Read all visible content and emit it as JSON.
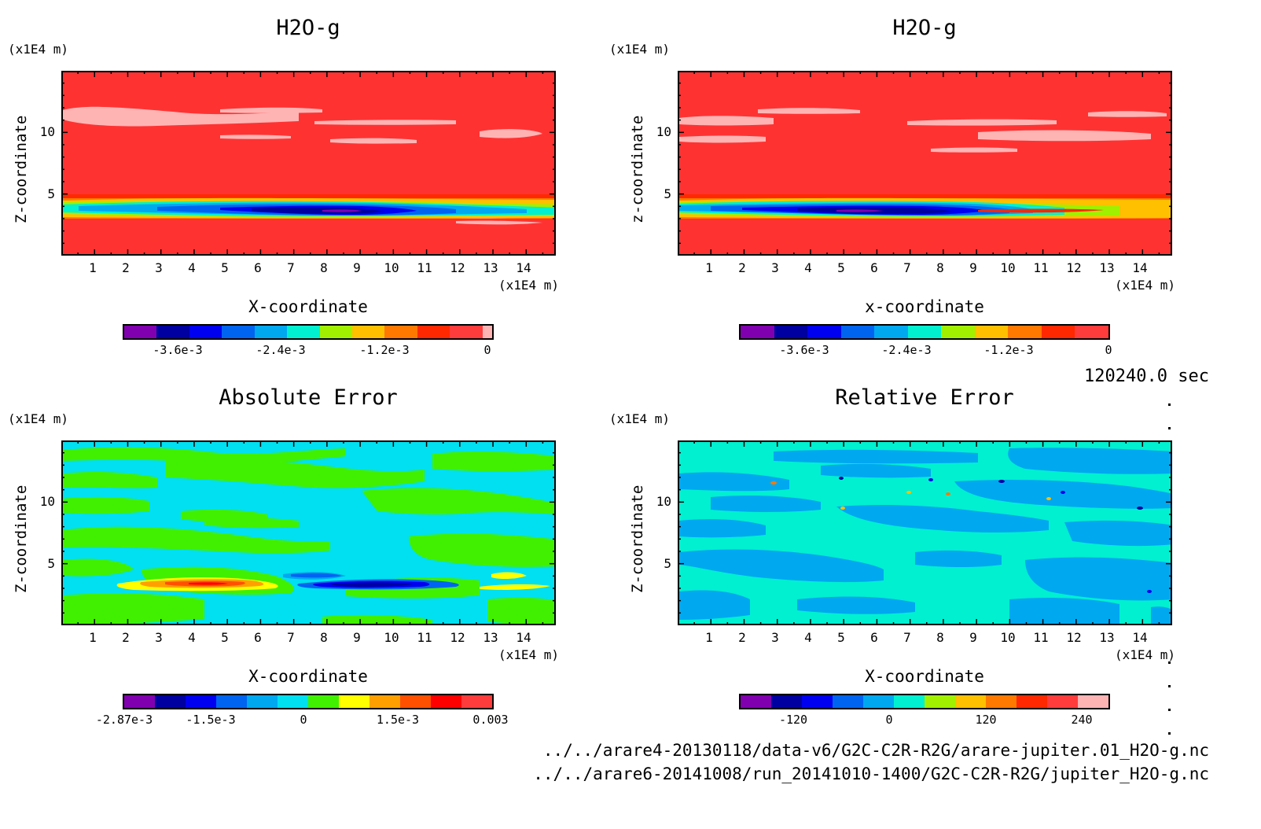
{
  "time_label": "120240.0 sec",
  "files": [
    "../../arare4-20130118/data-v6/G2C-C2R-R2G/arare-jupiter.01_H2O-g.nc",
    "../../arare6-20141008/run_20141010-1400/G2C-C2R-R2G/jupiter_H2O-g.nc"
  ],
  "colors": {
    "levels_h2o": [
      "#8000b0",
      "#0000a0",
      "#0000f0",
      "#0064f0",
      "#00a8f0",
      "#00f0d0",
      "#a0f000",
      "#ffc000",
      "#ff7800",
      "#ff2800",
      "#ff3c3c",
      "#ffb4b4"
    ],
    "levels_abs": [
      "#8000b0",
      "#0000a0",
      "#0000f0",
      "#0064f0",
      "#00a8f0",
      "#00e0f0",
      "#40f000",
      "#ffff00",
      "#ffa000",
      "#ff5000",
      "#ff0000",
      "#ff3c3c"
    ],
    "levels_rel": [
      "#8000b0",
      "#0000a0",
      "#0000f0",
      "#0064f0",
      "#00a8f0",
      "#00f0d0",
      "#a0f000",
      "#ffc000",
      "#ff7800",
      "#ff2800",
      "#ff3c3c",
      "#ffb4b4"
    ]
  },
  "chart_data": [
    {
      "type": "heatmap",
      "title": "H2O-g",
      "xlabel": "X-coordinate",
      "ylabel": "Z-coordinate",
      "x_unit": "(x1E4 m)",
      "y_unit": "(x1E4 m)",
      "x_ticks": [
        "1",
        "2",
        "3",
        "4",
        "5",
        "6",
        "7",
        "8",
        "9",
        "10",
        "11",
        "12",
        "13",
        "14"
      ],
      "y_ticks": [
        "5",
        "10"
      ],
      "xlim": [
        0,
        15
      ],
      "ylim": [
        0,
        15
      ],
      "colorbar_ticks": [
        "-3.6e-3",
        "-2.4e-3",
        "-1.2e-3",
        "0"
      ],
      "colorbar_range": [
        -0.0045,
        0.0002
      ],
      "description_field": "moist layer anomaly near z=3.5 with minimum near x=8.5"
    },
    {
      "type": "heatmap",
      "title": "H2O-g",
      "xlabel": "x-coordinate",
      "ylabel": "z-coordinate",
      "x_unit": "(x1E4 m)",
      "y_unit": "(x1E4 m)",
      "x_ticks": [
        "1",
        "2",
        "3",
        "4",
        "5",
        "6",
        "7",
        "8",
        "9",
        "10",
        "11",
        "12",
        "13",
        "14"
      ],
      "y_ticks": [
        "5",
        "10"
      ],
      "xlim": [
        0,
        15
      ],
      "ylim": [
        0,
        15
      ],
      "colorbar_ticks": [
        "-3.6e-3",
        "-2.4e-3",
        "-1.2e-3",
        "0"
      ],
      "colorbar_range": [
        -0.0045,
        0.0002
      ]
    },
    {
      "type": "heatmap",
      "title": "Absolute Error",
      "xlabel": "X-coordinate",
      "ylabel": "Z-coordinate",
      "x_unit": "(x1E4 m)",
      "y_unit": "(x1E4 m)",
      "x_ticks": [
        "1",
        "2",
        "3",
        "4",
        "5",
        "6",
        "7",
        "8",
        "9",
        "10",
        "11",
        "12",
        "13",
        "14"
      ],
      "y_ticks": [
        "5",
        "10"
      ],
      "xlim": [
        0,
        15
      ],
      "ylim": [
        0,
        15
      ],
      "colorbar_ticks": [
        "-2.87e-3",
        "-1.5e-3",
        "0",
        "1.5e-3",
        "0.003"
      ],
      "colorbar_range": [
        -0.00287,
        0.003
      ]
    },
    {
      "type": "heatmap",
      "title": "Relative Error",
      "xlabel": "X-coordinate",
      "ylabel": "Z-coordinate",
      "x_unit": "(x1E4 m)",
      "y_unit": "(x1E4 m)",
      "x_ticks": [
        "1",
        "2",
        "3",
        "4",
        "5",
        "6",
        "7",
        "8",
        "9",
        "10",
        "11",
        "12",
        "13",
        "14"
      ],
      "y_ticks": [
        "5",
        "10"
      ],
      "xlim": [
        0,
        15
      ],
      "ylim": [
        0,
        15
      ],
      "colorbar_ticks": [
        "-120",
        "0",
        "120",
        "240"
      ],
      "colorbar_range": [
        -230,
        300
      ]
    }
  ]
}
